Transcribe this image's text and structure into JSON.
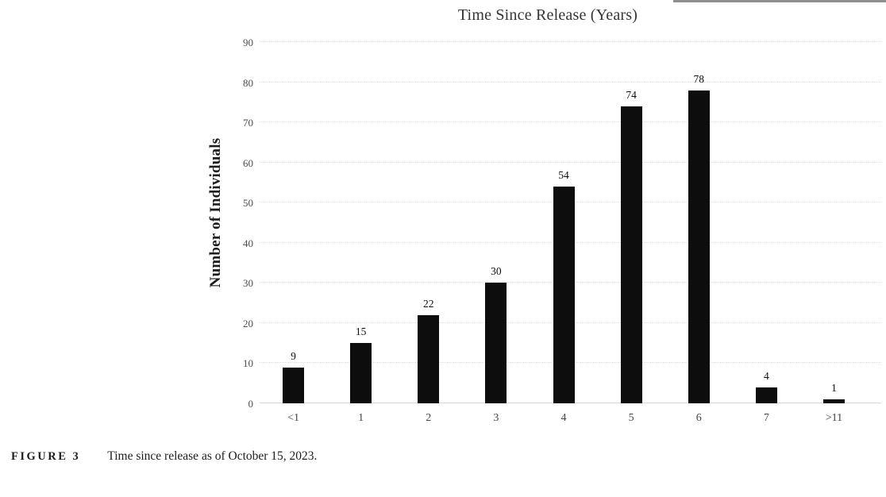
{
  "chart_data": {
    "type": "bar",
    "title": "Time Since Release (Years)",
    "ylabel": "Number of Individuals",
    "xlabel": "",
    "categories": [
      "<1",
      "1",
      "2",
      "3",
      "4",
      "5",
      "6",
      "7",
      ">11"
    ],
    "values": [
      9,
      15,
      22,
      30,
      54,
      74,
      78,
      4,
      1
    ],
    "ylim": [
      0,
      90
    ],
    "ytick_step": 10,
    "grid": true,
    "legend": "none",
    "show_value_labels": true,
    "style": {
      "bar_color": "#0d0d0d",
      "grid_color": "#dedede",
      "baseline_color": "#d6d6d6",
      "title_color": "#353535",
      "tick_label_color": "#4d4d4d",
      "value_label_color": "#101010"
    }
  },
  "caption": {
    "label": "FIGURE 3",
    "text": "Time since release as of October 15, 2023."
  }
}
